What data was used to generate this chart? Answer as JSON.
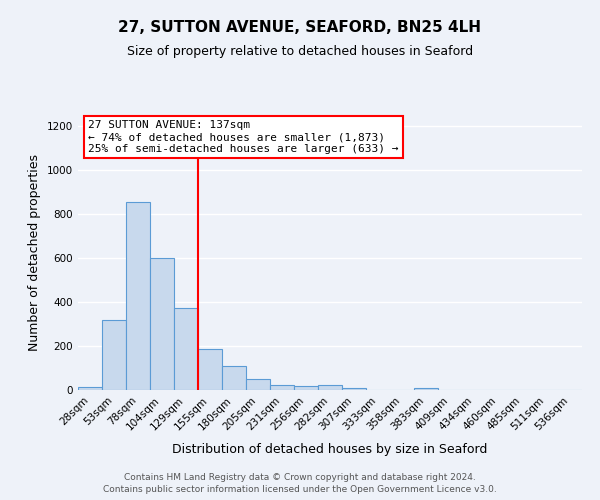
{
  "title": "27, SUTTON AVENUE, SEAFORD, BN25 4LH",
  "subtitle": "Size of property relative to detached houses in Seaford",
  "xlabel": "Distribution of detached houses by size in Seaford",
  "ylabel": "Number of detached properties",
  "footnote1": "Contains HM Land Registry data © Crown copyright and database right 2024.",
  "footnote2": "Contains public sector information licensed under the Open Government Licence v3.0.",
  "bin_labels": [
    "28sqm",
    "53sqm",
    "78sqm",
    "104sqm",
    "129sqm",
    "155sqm",
    "180sqm",
    "205sqm",
    "231sqm",
    "256sqm",
    "282sqm",
    "307sqm",
    "333sqm",
    "358sqm",
    "383sqm",
    "409sqm",
    "434sqm",
    "460sqm",
    "485sqm",
    "511sqm",
    "536sqm"
  ],
  "bar_heights": [
    12,
    320,
    855,
    600,
    375,
    185,
    107,
    48,
    25,
    18,
    22,
    10,
    0,
    0,
    10,
    0,
    0,
    0,
    0,
    0,
    0
  ],
  "bar_color": "#c8d9ed",
  "bar_edgecolor": "#5b9bd5",
  "reference_line_x": 4.5,
  "reference_line_color": "red",
  "annotation_title": "27 SUTTON AVENUE: 137sqm",
  "annotation_line1": "← 74% of detached houses are smaller (1,873)",
  "annotation_line2": "25% of semi-detached houses are larger (633) →",
  "ylim": [
    0,
    1250
  ],
  "background_color": "#eef2f9",
  "grid_color": "white",
  "title_fontsize": 11,
  "subtitle_fontsize": 9,
  "ylabel_fontsize": 9,
  "xlabel_fontsize": 9,
  "tick_fontsize": 7.5,
  "annotation_fontsize": 8,
  "footnote_fontsize": 6.5
}
